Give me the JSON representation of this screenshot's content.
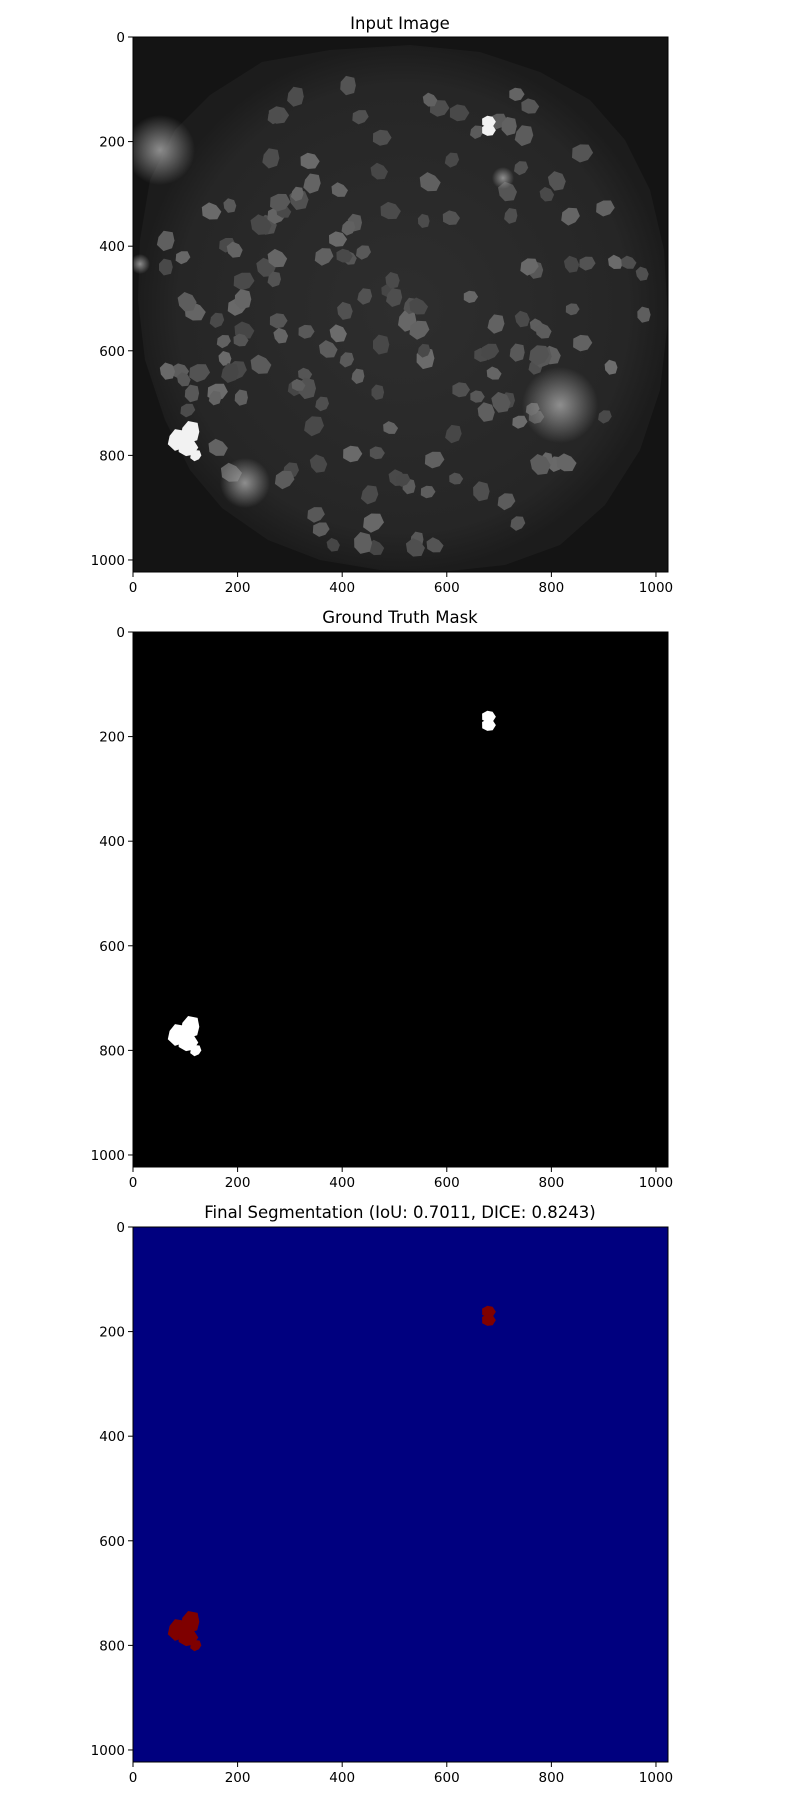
{
  "chart_data": [
    {
      "type": "heatmap",
      "title": "Input Image",
      "xlim": [
        0,
        1023
      ],
      "ylim": [
        1023,
        0
      ],
      "xticks": [
        0,
        200,
        400,
        600,
        800,
        1000
      ],
      "yticks": [
        0,
        200,
        400,
        600,
        800,
        1000
      ],
      "colormap": "gray",
      "content": "grayscale microscopy image: circular field of dim polygonal cells on dark background",
      "bright_regions": [
        {
          "x": 680,
          "y": 170
        },
        {
          "x": 105,
          "y": 770
        }
      ]
    },
    {
      "type": "heatmap",
      "title": "Ground Truth Mask",
      "xlim": [
        0,
        1023
      ],
      "ylim": [
        1023,
        0
      ],
      "xticks": [
        0,
        200,
        400,
        600,
        800,
        1000
      ],
      "yticks": [
        0,
        200,
        400,
        600,
        800,
        1000
      ],
      "colormap": "gray",
      "background_color": "#000000",
      "foreground_color": "#ffffff",
      "regions": [
        {
          "x": 680,
          "y": 170
        },
        {
          "x": 105,
          "y": 770
        }
      ]
    },
    {
      "type": "heatmap",
      "title": "Final Segmentation (IoU: 0.7011, DICE: 0.8243)",
      "xlim": [
        0,
        1023
      ],
      "ylim": [
        1023,
        0
      ],
      "xticks": [
        0,
        200,
        400,
        600,
        800,
        1000
      ],
      "yticks": [
        0,
        200,
        400,
        600,
        800,
        1000
      ],
      "colormap": "jet",
      "background_color": "#00007f",
      "foreground_color": "#7f0000",
      "regions": [
        {
          "x": 680,
          "y": 170
        },
        {
          "x": 105,
          "y": 770
        }
      ]
    }
  ]
}
